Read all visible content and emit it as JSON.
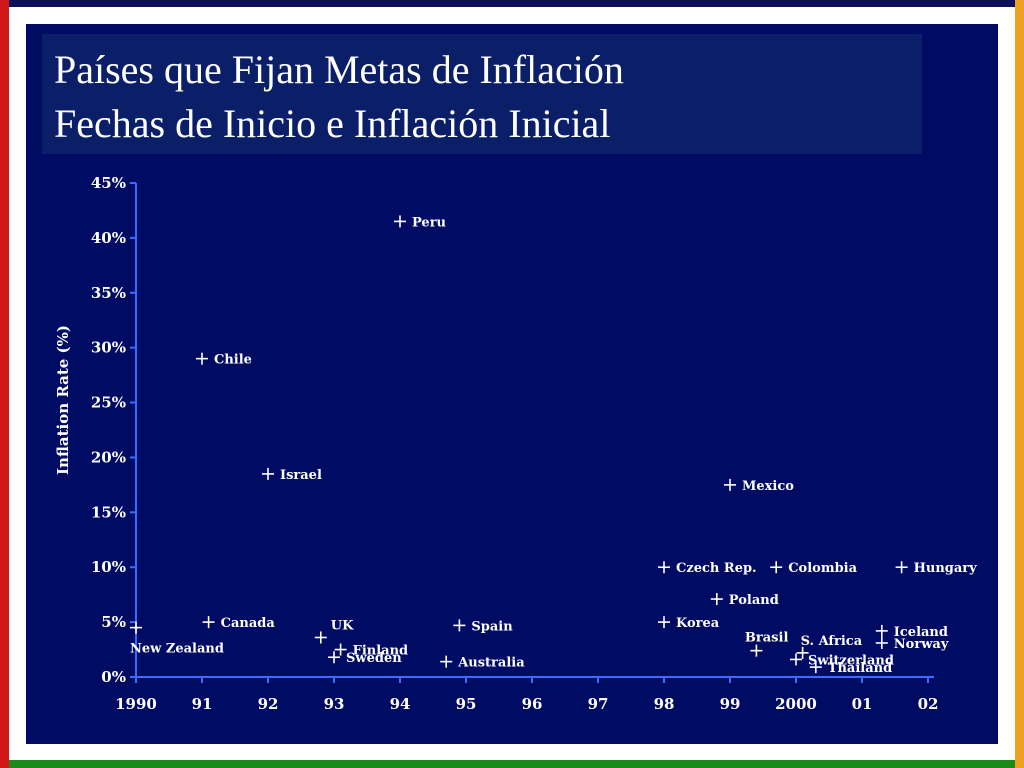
{
  "colors": {
    "left_bar": "#d21717",
    "right_bar": "#f0a020",
    "top_bar": "#0b0f5a",
    "bottom_bar": "#1a8a1a",
    "panel_bg": "#000b63",
    "title_bg": "#0b1f68",
    "text": "#ffffff",
    "highlight": "#ff2020"
  },
  "slide": {
    "title_line1": "Países que Fijan Metas de Inflación",
    "title_line2": "Fechas de Inicio e Inflación Inicial"
  },
  "chart_data": {
    "type": "scatter",
    "ylabel": "Inflation Rate (%)",
    "ylim": [
      0,
      45
    ],
    "yticks": [
      0,
      5,
      10,
      15,
      20,
      25,
      30,
      35,
      40,
      45
    ],
    "ytick_labels": [
      "0%",
      "5%",
      "10%",
      "15%",
      "20%",
      "25%",
      "30%",
      "35%",
      "40%",
      "45%"
    ],
    "xlim": [
      1990,
      2002
    ],
    "xticks": [
      1990,
      1991,
      1992,
      1993,
      1994,
      1995,
      1996,
      1997,
      1998,
      1999,
      2000,
      2001,
      2002
    ],
    "xtick_labels": [
      "1990",
      "91",
      "92",
      "93",
      "94",
      "95",
      "96",
      "97",
      "98",
      "99",
      "2000",
      "01",
      "02"
    ],
    "grid": false,
    "points": [
      {
        "label": "New Zealand",
        "x": 1990.0,
        "y": 4.5,
        "label_pos": "below",
        "highlight": false
      },
      {
        "label": "Canada",
        "x": 1991.1,
        "y": 5.0,
        "label_pos": "right",
        "highlight": false
      },
      {
        "label": "Chile",
        "x": 1991.0,
        "y": 29.0,
        "label_pos": "right",
        "highlight": true
      },
      {
        "label": "Israel",
        "x": 1992.0,
        "y": 18.5,
        "label_pos": "right",
        "highlight": false
      },
      {
        "label": "UK",
        "x": 1992.8,
        "y": 3.6,
        "label_pos": "above-right",
        "highlight": false
      },
      {
        "label": "Finland",
        "x": 1993.1,
        "y": 2.5,
        "label_pos": "right",
        "highlight": false
      },
      {
        "label": "Sweden",
        "x": 1993.0,
        "y": 1.8,
        "label_pos": "right",
        "highlight": false
      },
      {
        "label": "Peru",
        "x": 1994.0,
        "y": 41.5,
        "label_pos": "right",
        "highlight": false
      },
      {
        "label": "Spain",
        "x": 1994.9,
        "y": 4.7,
        "label_pos": "right",
        "highlight": false
      },
      {
        "label": "Australia",
        "x": 1994.7,
        "y": 1.4,
        "label_pos": "right",
        "highlight": false
      },
      {
        "label": "Czech Rep.",
        "x": 1998.0,
        "y": 10.0,
        "label_pos": "right",
        "highlight": false
      },
      {
        "label": "Korea",
        "x": 1998.0,
        "y": 5.0,
        "label_pos": "right",
        "highlight": false
      },
      {
        "label": "Poland",
        "x": 1998.8,
        "y": 7.1,
        "label_pos": "right",
        "highlight": false
      },
      {
        "label": "Mexico",
        "x": 1999.0,
        "y": 17.5,
        "label_pos": "right",
        "highlight": false
      },
      {
        "label": "Colombia",
        "x": 1999.7,
        "y": 10.0,
        "label_pos": "right",
        "highlight": false
      },
      {
        "label": "Brasil",
        "x": 1999.4,
        "y": 2.4,
        "label_pos": "above-left",
        "highlight": false
      },
      {
        "label": "S. Africa",
        "x": 2000.1,
        "y": 2.2,
        "label_pos": "above",
        "highlight": false
      },
      {
        "label": "Switzerland",
        "x": 2000.0,
        "y": 1.6,
        "label_pos": "right",
        "highlight": false
      },
      {
        "label": "Thailand",
        "x": 2000.3,
        "y": 0.9,
        "label_pos": "right",
        "highlight": false
      },
      {
        "label": "Iceland",
        "x": 2001.3,
        "y": 4.2,
        "label_pos": "right",
        "highlight": false
      },
      {
        "label": "Norway",
        "x": 2001.3,
        "y": 3.1,
        "label_pos": "right",
        "highlight": false
      },
      {
        "label": "Hungary",
        "x": 2001.6,
        "y": 10.0,
        "label_pos": "right",
        "highlight": false
      }
    ]
  }
}
